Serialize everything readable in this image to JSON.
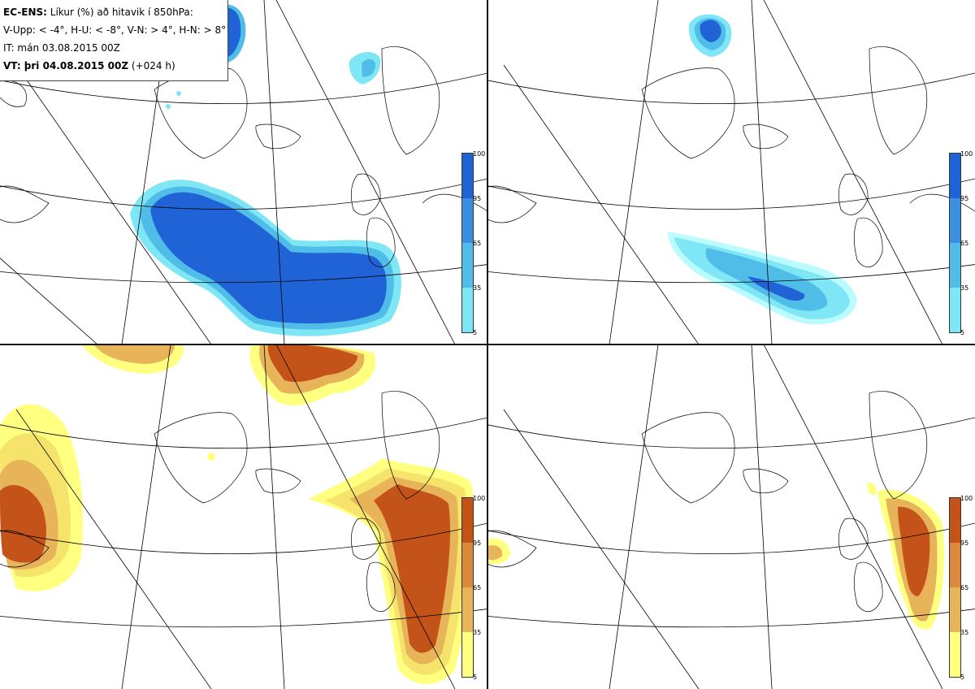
{
  "header": {
    "line1_bold": "EC-ENS:",
    "line1_rest": "Líkur (%) að hitavik í 850hPa:",
    "line2": "V-Upp: < -4°, H-U: < -8°, V-N: > 4°, H-N: > 8°",
    "line3": "IT: mán 03.08.2015 00Z",
    "line4_bold": "VT: þri 04.08.2015 00Z",
    "line4_rest": "(+024 h)"
  },
  "panels": [
    {
      "id": "top-left",
      "label": "V-Upp",
      "scale": "cold"
    },
    {
      "id": "top-right",
      "label": "H-U",
      "scale": "cold"
    },
    {
      "id": "bottom-left",
      "label": "V-N",
      "scale": "warm"
    },
    {
      "id": "bottom-right",
      "label": "H-N",
      "scale": "warm"
    }
  ],
  "legend": {
    "ticks": [
      "100",
      "95",
      "65",
      "35",
      "5"
    ],
    "cold_colors": [
      "#1f63d6",
      "#3a8fe0",
      "#4fbde8",
      "#7ee6f5",
      "#b9fbff"
    ],
    "warm_colors": [
      "#c4531a",
      "#da8a3d",
      "#e8b45a",
      "#f5e36b",
      "#ffff80"
    ]
  }
}
